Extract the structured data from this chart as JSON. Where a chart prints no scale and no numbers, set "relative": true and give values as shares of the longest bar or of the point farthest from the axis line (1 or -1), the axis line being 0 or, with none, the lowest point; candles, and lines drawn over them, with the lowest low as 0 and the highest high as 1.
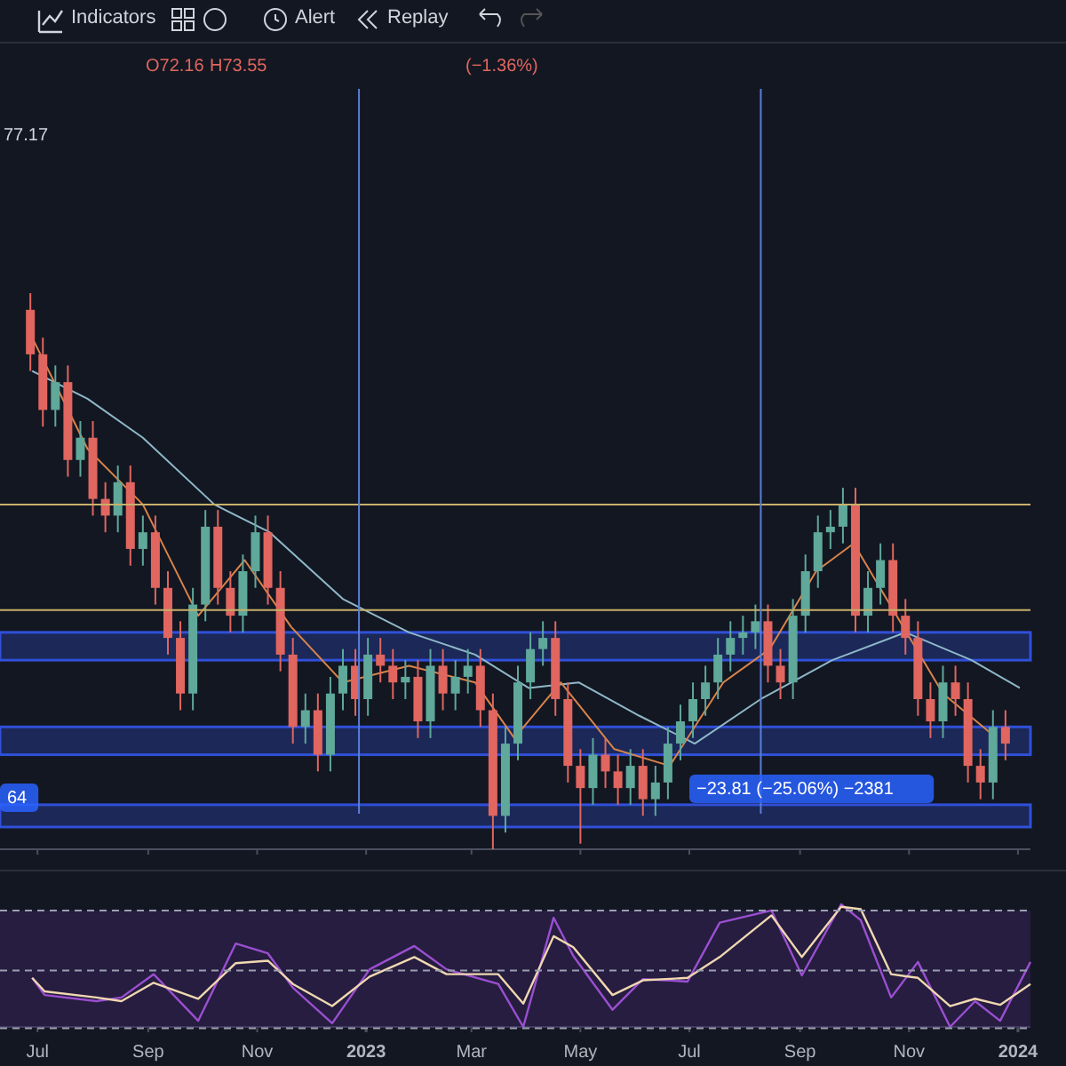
{
  "chart_data": [
    {
      "type": "candlestick",
      "relative": true,
      "tick_labels": false,
      "xlim": [
        "2022-06-10",
        "2024-01-08"
      ],
      "xticks": [
        {
          "value": "2022-07-01",
          "label": null
        },
        {
          "value": "2022-09-01",
          "label": null
        },
        {
          "value": "2022-11-01",
          "label": null
        },
        {
          "value": "2023-01-01",
          "label": null
        },
        {
          "value": "2023-03-01",
          "label": null
        },
        {
          "value": "2023-05-01",
          "label": null
        },
        {
          "value": "2023-07-01",
          "label": null
        },
        {
          "value": "2023-09-01",
          "label": null
        },
        {
          "value": "2023-11-01",
          "label": null
        },
        {
          "value": "2024-01-01",
          "label": null
        }
      ],
      "x": [
        "2022-06-27",
        "2022-07-04",
        "2022-07-11",
        "2022-07-18",
        "2022-07-25",
        "2022-08-01",
        "2022-08-08",
        "2022-08-15",
        "2022-08-22",
        "2022-08-29",
        "2022-09-05",
        "2022-09-12",
        "2022-09-19",
        "2022-09-26",
        "2022-10-03",
        "2022-10-10",
        "2022-10-17",
        "2022-10-24",
        "2022-10-31",
        "2022-11-07",
        "2022-11-14",
        "2022-11-21",
        "2022-11-28",
        "2022-12-05",
        "2022-12-12",
        "2022-12-19",
        "2022-12-26",
        "2023-01-02",
        "2023-01-09",
        "2023-01-16",
        "2023-01-23",
        "2023-01-30",
        "2023-02-06",
        "2023-02-13",
        "2023-02-20",
        "2023-02-27",
        "2023-03-06",
        "2023-03-13",
        "2023-03-20",
        "2023-03-27",
        "2023-04-03",
        "2023-04-10",
        "2023-04-17",
        "2023-04-24",
        "2023-05-01",
        "2023-05-08",
        "2023-05-15",
        "2023-05-22",
        "2023-05-29",
        "2023-06-05",
        "2023-06-12",
        "2023-06-19",
        "2023-06-26",
        "2023-07-03",
        "2023-07-10",
        "2023-07-17",
        "2023-07-24",
        "2023-07-31",
        "2023-08-07",
        "2023-08-14",
        "2023-08-21",
        "2023-08-28",
        "2023-09-04",
        "2023-09-11",
        "2023-09-18",
        "2023-09-25",
        "2023-10-02",
        "2023-10-09",
        "2023-10-16",
        "2023-10-23",
        "2023-10-30",
        "2023-11-06",
        "2023-11-13",
        "2023-11-20",
        "2023-11-27",
        "2023-12-04",
        "2023-12-11",
        "2023-12-18",
        "2023-12-25"
      ],
      "ohlc": [
        [
          0.97,
          1.0,
          0.86,
          0.89
        ],
        [
          0.89,
          0.92,
          0.76,
          0.79
        ],
        [
          0.79,
          0.87,
          0.76,
          0.84
        ],
        [
          0.84,
          0.87,
          0.67,
          0.7
        ],
        [
          0.7,
          0.77,
          0.67,
          0.74
        ],
        [
          0.74,
          0.77,
          0.6,
          0.63
        ],
        [
          0.63,
          0.66,
          0.57,
          0.6
        ],
        [
          0.6,
          0.69,
          0.57,
          0.66
        ],
        [
          0.66,
          0.69,
          0.51,
          0.54
        ],
        [
          0.54,
          0.6,
          0.51,
          0.57
        ],
        [
          0.57,
          0.6,
          0.44,
          0.47
        ],
        [
          0.47,
          0.5,
          0.35,
          0.38
        ],
        [
          0.38,
          0.41,
          0.25,
          0.28
        ],
        [
          0.28,
          0.47,
          0.25,
          0.44
        ],
        [
          0.44,
          0.61,
          0.41,
          0.58
        ],
        [
          0.58,
          0.61,
          0.44,
          0.47
        ],
        [
          0.47,
          0.5,
          0.39,
          0.42
        ],
        [
          0.42,
          0.53,
          0.39,
          0.5
        ],
        [
          0.5,
          0.6,
          0.47,
          0.57
        ],
        [
          0.57,
          0.6,
          0.44,
          0.47
        ],
        [
          0.47,
          0.5,
          0.32,
          0.35
        ],
        [
          0.35,
          0.38,
          0.19,
          0.22
        ],
        [
          0.22,
          0.28,
          0.19,
          0.25
        ],
        [
          0.25,
          0.28,
          0.14,
          0.17
        ],
        [
          0.17,
          0.31,
          0.14,
          0.28
        ],
        [
          0.28,
          0.36,
          0.25,
          0.33
        ],
        [
          0.33,
          0.36,
          0.24,
          0.27
        ],
        [
          0.27,
          0.38,
          0.24,
          0.35
        ],
        [
          0.35,
          0.38,
          0.3,
          0.33
        ],
        [
          0.33,
          0.36,
          0.27,
          0.3
        ],
        [
          0.3,
          0.34,
          0.27,
          0.31
        ],
        [
          0.31,
          0.34,
          0.2,
          0.23
        ],
        [
          0.23,
          0.36,
          0.2,
          0.33
        ],
        [
          0.33,
          0.36,
          0.25,
          0.28
        ],
        [
          0.28,
          0.34,
          0.25,
          0.31
        ],
        [
          0.31,
          0.36,
          0.28,
          0.33
        ],
        [
          0.33,
          0.36,
          0.22,
          0.25
        ],
        [
          0.25,
          0.28,
          0.0,
          0.06
        ],
        [
          0.06,
          0.22,
          0.03,
          0.19
        ],
        [
          0.19,
          0.33,
          0.16,
          0.3
        ],
        [
          0.3,
          0.39,
          0.27,
          0.36
        ],
        [
          0.36,
          0.41,
          0.33,
          0.38
        ],
        [
          0.38,
          0.41,
          0.24,
          0.27
        ],
        [
          0.27,
          0.3,
          0.12,
          0.15
        ],
        [
          0.15,
          0.18,
          0.01,
          0.11
        ],
        [
          0.11,
          0.2,
          0.08,
          0.17
        ],
        [
          0.17,
          0.2,
          0.11,
          0.14
        ],
        [
          0.14,
          0.17,
          0.08,
          0.11
        ],
        [
          0.11,
          0.18,
          0.08,
          0.15
        ],
        [
          0.15,
          0.18,
          0.06,
          0.09
        ],
        [
          0.09,
          0.15,
          0.06,
          0.12
        ],
        [
          0.12,
          0.22,
          0.09,
          0.19
        ],
        [
          0.19,
          0.26,
          0.16,
          0.23
        ],
        [
          0.23,
          0.3,
          0.2,
          0.27
        ],
        [
          0.27,
          0.33,
          0.24,
          0.3
        ],
        [
          0.3,
          0.38,
          0.27,
          0.35
        ],
        [
          0.35,
          0.41,
          0.32,
          0.38
        ],
        [
          0.38,
          0.42,
          0.35,
          0.39
        ],
        [
          0.39,
          0.44,
          0.36,
          0.41
        ],
        [
          0.41,
          0.44,
          0.3,
          0.33
        ],
        [
          0.33,
          0.36,
          0.27,
          0.3
        ],
        [
          0.3,
          0.45,
          0.27,
          0.42
        ],
        [
          0.42,
          0.53,
          0.39,
          0.5
        ],
        [
          0.5,
          0.6,
          0.47,
          0.57
        ],
        [
          0.57,
          0.61,
          0.54,
          0.58
        ],
        [
          0.58,
          0.65,
          0.55,
          0.62
        ],
        [
          0.62,
          0.65,
          0.39,
          0.42
        ],
        [
          0.42,
          0.5,
          0.39,
          0.47
        ],
        [
          0.47,
          0.55,
          0.44,
          0.52
        ],
        [
          0.52,
          0.55,
          0.39,
          0.42
        ],
        [
          0.42,
          0.45,
          0.35,
          0.38
        ],
        [
          0.38,
          0.41,
          0.24,
          0.27
        ],
        [
          0.27,
          0.3,
          0.2,
          0.23
        ],
        [
          0.23,
          0.33,
          0.2,
          0.3
        ],
        [
          0.3,
          0.33,
          0.24,
          0.27
        ],
        [
          0.27,
          0.3,
          0.12,
          0.15
        ],
        [
          0.15,
          0.18,
          0.09,
          0.12
        ],
        [
          0.12,
          0.25,
          0.09,
          0.22
        ],
        [
          0.22,
          0.25,
          0.16,
          0.19
        ]
      ],
      "series": [
        {
          "type": "line",
          "color": "#8fb8c8",
          "x": [
            "2022-06-28",
            "2022-07-29",
            "2022-08-29",
            "2022-10-08",
            "2022-11-08",
            "2022-12-19",
            "2023-01-25",
            "2023-03-03",
            "2023-04-02",
            "2023-04-30",
            "2023-06-03",
            "2023-07-04",
            "2023-08-10",
            "2023-09-19",
            "2023-10-30",
            "2023-12-06",
            "2024-01-02"
          ],
          "values": [
            0.86,
            0.81,
            0.74,
            0.62,
            0.57,
            0.45,
            0.39,
            0.35,
            0.29,
            0.3,
            0.24,
            0.19,
            0.27,
            0.34,
            0.39,
            0.34,
            0.29
          ]
        },
        {
          "type": "line",
          "color": "#d9844a",
          "x": [
            "2022-06-28",
            "2022-07-29",
            "2022-08-29",
            "2022-09-29",
            "2022-10-25",
            "2022-11-20",
            "2022-12-19",
            "2023-01-25",
            "2023-03-03",
            "2023-03-25",
            "2023-04-20",
            "2023-05-20",
            "2023-06-20",
            "2023-07-20",
            "2023-08-15",
            "2023-09-10",
            "2023-10-01",
            "2023-10-25",
            "2023-11-20",
            "2023-12-20"
          ],
          "values": [
            0.92,
            0.72,
            0.62,
            0.42,
            0.52,
            0.4,
            0.3,
            0.33,
            0.3,
            0.2,
            0.3,
            0.18,
            0.15,
            0.3,
            0.36,
            0.5,
            0.55,
            0.42,
            0.28,
            0.2
          ]
        }
      ],
      "ref_lines": [
        {
          "axis": "y",
          "value": 0.62,
          "color": "#c8b06a"
        },
        {
          "axis": "y",
          "value": 0.43,
          "color": "#c8b06a"
        },
        {
          "axis": "x",
          "value": "2022-12-28",
          "color": "#5b7fd6"
        },
        {
          "axis": "x",
          "value": "2023-08-10",
          "color": "#5b7fd6"
        }
      ],
      "bands": [
        {
          "axis": "y",
          "from": 0.34,
          "to": 0.39,
          "color": "#3050d8"
        },
        {
          "axis": "y",
          "from": 0.17,
          "to": 0.22,
          "color": "#3050d8"
        },
        {
          "axis": "y",
          "from": 0.04,
          "to": 0.08,
          "color": "#3050d8"
        }
      ],
      "annotations": [
        "Indicators",
        "Alert",
        "Replay",
        "O72.16",
        "H73.55",
        "(−1.36%)",
        "77.17",
        "64",
        "−23.81 (−25.06%) −2381"
      ]
    },
    {
      "type": "line",
      "relative": true,
      "tick_labels": "x",
      "xlim": [
        "2022-06-10",
        "2024-01-08"
      ],
      "xticks": [
        {
          "value": "2022-07-01",
          "label": "Jul"
        },
        {
          "value": "2022-09-01",
          "label": "Sep"
        },
        {
          "value": "2022-11-01",
          "label": "Nov"
        },
        {
          "value": "2023-01-01",
          "label": "2023"
        },
        {
          "value": "2023-03-01",
          "label": "Mar"
        },
        {
          "value": "2023-05-01",
          "label": "May"
        },
        {
          "value": "2023-07-01",
          "label": "Jul"
        },
        {
          "value": "2023-09-01",
          "label": "Sep"
        },
        {
          "value": "2023-11-01",
          "label": "Nov"
        },
        {
          "value": "2024-01-01",
          "label": "2024"
        }
      ],
      "x": [
        "2022-06-28",
        "2022-07-05",
        "2022-08-03",
        "2022-08-17",
        "2022-09-04",
        "2022-09-29",
        "2022-10-20",
        "2022-11-07",
        "2022-11-21",
        "2022-12-13",
        "2023-01-03",
        "2023-01-28",
        "2023-02-15",
        "2023-03-16",
        "2023-03-30",
        "2023-04-16",
        "2023-04-27",
        "2023-05-19",
        "2023-06-05",
        "2023-06-30",
        "2023-07-18",
        "2023-08-16",
        "2023-09-02",
        "2023-09-24",
        "2023-10-05",
        "2023-10-22",
        "2023-11-06",
        "2023-11-24",
        "2023-12-08",
        "2023-12-22",
        "2024-01-08"
      ],
      "series": [
        {
          "color": "#9b4fd0",
          "values": [
            0.4,
            0.26,
            0.21,
            0.24,
            0.43,
            0.05,
            0.68,
            0.6,
            0.32,
            0.03,
            0.47,
            0.66,
            0.47,
            0.35,
            0,
            0.89,
            0.58,
            0.14,
            0.39,
            0.37,
            0.85,
            0.95,
            0.42,
            1,
            0.87,
            0.24,
            0.53,
            0,
            0.21,
            0.05,
            0.53
          ]
        },
        {
          "color": "#f0d8b0",
          "values": [
            0.4,
            0.29,
            0.24,
            0.21,
            0.36,
            0.23,
            0.52,
            0.54,
            0.35,
            0.17,
            0.41,
            0.57,
            0.43,
            0.43,
            0.19,
            0.74,
            0.65,
            0.26,
            0.38,
            0.4,
            0.57,
            0.91,
            0.57,
            0.98,
            0.96,
            0.43,
            0.4,
            0.17,
            0.23,
            0.18,
            0.35
          ]
        }
      ],
      "ref_lines": [
        {
          "axis": "y",
          "value": 0.95,
          "color": "#9aa0b0",
          "line_style": "dashed"
        },
        {
          "axis": "y",
          "value": 0.46,
          "color": "#9aa0b0",
          "line_style": "dashed"
        },
        {
          "axis": "y",
          "value": -0.01,
          "color": "#9aa0b0",
          "line_style": "dashed"
        }
      ],
      "bands": [
        {
          "axis": "y",
          "from": -0.01,
          "to": 0.95,
          "color": "#3a2460"
        }
      ]
    }
  ]
}
